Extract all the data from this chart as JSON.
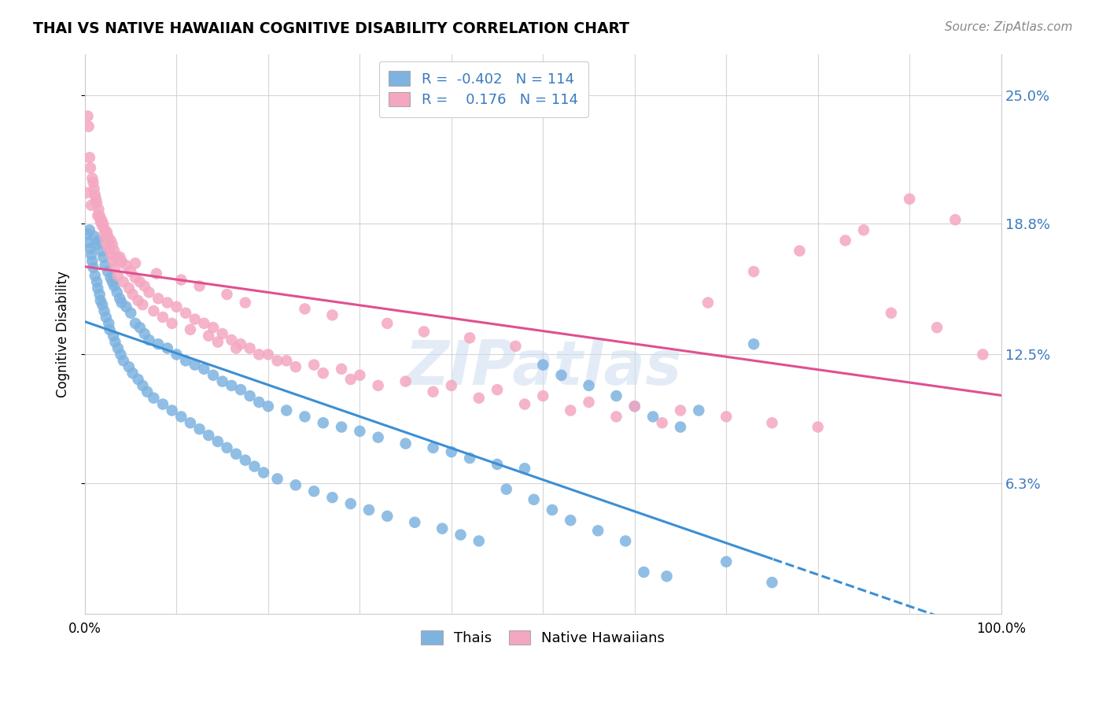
{
  "title": "THAI VS NATIVE HAWAIIAN COGNITIVE DISABILITY CORRELATION CHART",
  "source": "Source: ZipAtlas.com",
  "ylabel": "Cognitive Disability",
  "ytick_labels": [
    "6.3%",
    "12.5%",
    "18.8%",
    "25.0%"
  ],
  "ytick_values": [
    6.3,
    12.5,
    18.8,
    25.0
  ],
  "xlim": [
    0,
    100
  ],
  "ylim": [
    0,
    27
  ],
  "thai_color": "#7eb3e0",
  "hawaiian_color": "#f4a7c0",
  "thai_line_color": "#3b8fd4",
  "hawaiian_line_color": "#e05090",
  "thai_R": -0.402,
  "thai_N": 114,
  "hawaiian_R": 0.176,
  "hawaiian_N": 114,
  "watermark": "ZIPatlas",
  "legend_labels": [
    "Thais",
    "Native Hawaiians"
  ],
  "thai_scatter_x": [
    0.5,
    1.0,
    1.2,
    1.5,
    1.8,
    2.0,
    2.2,
    2.5,
    2.8,
    3.0,
    3.2,
    3.5,
    3.8,
    4.0,
    4.5,
    5.0,
    5.5,
    6.0,
    6.5,
    7.0,
    8.0,
    9.0,
    10.0,
    11.0,
    12.0,
    13.0,
    14.0,
    15.0,
    16.0,
    17.0,
    18.0,
    19.0,
    20.0,
    22.0,
    24.0,
    26.0,
    28.0,
    30.0,
    32.0,
    35.0,
    38.0,
    40.0,
    42.0,
    45.0,
    48.0,
    50.0,
    52.0,
    55.0,
    58.0,
    60.0,
    62.0,
    65.0,
    70.0,
    75.0,
    0.3,
    0.4,
    0.6,
    0.7,
    0.8,
    0.9,
    1.1,
    1.3,
    1.4,
    1.6,
    1.7,
    1.9,
    2.1,
    2.3,
    2.6,
    2.7,
    3.1,
    3.3,
    3.6,
    3.9,
    4.2,
    4.8,
    5.2,
    5.8,
    6.3,
    6.8,
    7.5,
    8.5,
    9.5,
    10.5,
    11.5,
    12.5,
    13.5,
    14.5,
    15.5,
    16.5,
    17.5,
    18.5,
    19.5,
    21.0,
    23.0,
    25.0,
    27.0,
    29.0,
    31.0,
    33.0,
    36.0,
    39.0,
    41.0,
    43.0,
    46.0,
    49.0,
    51.0,
    53.0,
    56.0,
    59.0,
    61.0,
    63.5,
    67.0,
    73.0
  ],
  "thai_scatter_y": [
    18.5,
    18.2,
    17.8,
    18.0,
    17.5,
    17.2,
    16.8,
    16.5,
    16.2,
    16.0,
    15.8,
    15.5,
    15.2,
    15.0,
    14.8,
    14.5,
    14.0,
    13.8,
    13.5,
    13.2,
    13.0,
    12.8,
    12.5,
    12.2,
    12.0,
    11.8,
    11.5,
    11.2,
    11.0,
    10.8,
    10.5,
    10.2,
    10.0,
    9.8,
    9.5,
    9.2,
    9.0,
    8.8,
    8.5,
    8.2,
    8.0,
    7.8,
    7.5,
    7.2,
    7.0,
    12.0,
    11.5,
    11.0,
    10.5,
    10.0,
    9.5,
    9.0,
    2.5,
    1.5,
    18.3,
    17.9,
    17.6,
    17.3,
    17.0,
    16.7,
    16.3,
    16.0,
    15.7,
    15.4,
    15.1,
    14.9,
    14.6,
    14.3,
    14.0,
    13.7,
    13.4,
    13.1,
    12.8,
    12.5,
    12.2,
    11.9,
    11.6,
    11.3,
    11.0,
    10.7,
    10.4,
    10.1,
    9.8,
    9.5,
    9.2,
    8.9,
    8.6,
    8.3,
    8.0,
    7.7,
    7.4,
    7.1,
    6.8,
    6.5,
    6.2,
    5.9,
    5.6,
    5.3,
    5.0,
    4.7,
    4.4,
    4.1,
    3.8,
    3.5,
    6.0,
    5.5,
    5.0,
    4.5,
    4.0,
    3.5,
    2.0,
    1.8,
    9.8,
    13.0
  ],
  "hawaiian_scatter_x": [
    0.3,
    0.5,
    0.8,
    1.0,
    1.2,
    1.5,
    1.8,
    2.0,
    2.2,
    2.5,
    2.8,
    3.0,
    3.2,
    3.5,
    4.0,
    4.5,
    5.0,
    5.5,
    6.0,
    6.5,
    7.0,
    8.0,
    9.0,
    10.0,
    11.0,
    12.0,
    13.0,
    14.0,
    15.0,
    16.0,
    17.0,
    18.0,
    20.0,
    22.0,
    25.0,
    28.0,
    30.0,
    35.0,
    40.0,
    45.0,
    50.0,
    55.0,
    60.0,
    65.0,
    70.0,
    75.0,
    80.0,
    85.0,
    90.0,
    95.0,
    0.4,
    0.6,
    0.9,
    1.1,
    1.3,
    1.6,
    1.9,
    2.1,
    2.3,
    2.6,
    2.9,
    3.1,
    3.3,
    3.6,
    4.2,
    4.8,
    5.2,
    5.8,
    6.3,
    7.5,
    8.5,
    9.5,
    11.5,
    13.5,
    14.5,
    16.5,
    19.0,
    21.0,
    23.0,
    26.0,
    29.0,
    32.0,
    38.0,
    43.0,
    48.0,
    53.0,
    58.0,
    63.0,
    68.0,
    73.0,
    78.0,
    83.0,
    88.0,
    93.0,
    98.0,
    0.2,
    0.7,
    1.4,
    1.7,
    2.4,
    2.7,
    3.8,
    5.5,
    7.8,
    10.5,
    12.5,
    15.5,
    17.5,
    24.0,
    27.0,
    33.0,
    37.0,
    42.0,
    47.0
  ],
  "hawaiian_scatter_y": [
    24.0,
    22.0,
    21.0,
    20.5,
    20.0,
    19.5,
    19.0,
    18.8,
    18.5,
    18.2,
    18.0,
    17.8,
    17.5,
    17.2,
    17.0,
    16.8,
    16.5,
    16.2,
    16.0,
    15.8,
    15.5,
    15.2,
    15.0,
    14.8,
    14.5,
    14.2,
    14.0,
    13.8,
    13.5,
    13.2,
    13.0,
    12.8,
    12.5,
    12.2,
    12.0,
    11.8,
    11.5,
    11.2,
    11.0,
    10.8,
    10.5,
    10.2,
    10.0,
    9.8,
    9.5,
    9.2,
    9.0,
    18.5,
    20.0,
    19.0,
    23.5,
    21.5,
    20.8,
    20.2,
    19.8,
    19.2,
    18.7,
    18.3,
    17.9,
    17.6,
    17.3,
    17.0,
    16.7,
    16.3,
    16.0,
    15.7,
    15.4,
    15.1,
    14.9,
    14.6,
    14.3,
    14.0,
    13.7,
    13.4,
    13.1,
    12.8,
    12.5,
    12.2,
    11.9,
    11.6,
    11.3,
    11.0,
    10.7,
    10.4,
    10.1,
    9.8,
    9.5,
    9.2,
    15.0,
    16.5,
    17.5,
    18.0,
    14.5,
    13.8,
    12.5,
    20.3,
    19.7,
    19.2,
    18.9,
    18.4,
    17.7,
    17.2,
    16.9,
    16.4,
    16.1,
    15.8,
    15.4,
    15.0,
    14.7,
    14.4,
    14.0,
    13.6,
    13.3,
    12.9
  ]
}
